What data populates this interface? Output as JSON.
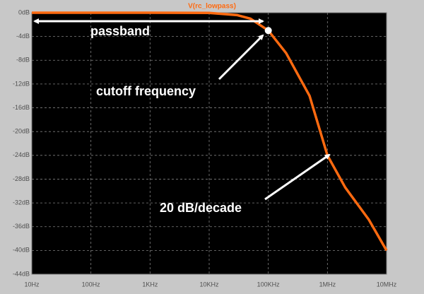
{
  "chart_data": {
    "type": "line",
    "title": "V(rc_lowpass)",
    "x": [
      10,
      100,
      1000,
      10000,
      30000,
      50000,
      100000,
      200000,
      500000,
      1000000,
      2000000,
      5000000,
      10000000
    ],
    "series": [
      {
        "name": "V(rc_lowpass)",
        "color": "#ff6a10",
        "values": [
          0,
          0,
          0,
          -0.04,
          -0.4,
          -1,
          -3,
          -6.8,
          -14,
          -24,
          -29.4,
          -34.8,
          -40
        ]
      }
    ],
    "log_x": true,
    "grid": true,
    "xlim": [
      10,
      10000000
    ],
    "xticks": [
      {
        "value": 10,
        "label": "10Hz"
      },
      {
        "value": 100,
        "label": "100Hz"
      },
      {
        "value": 1000,
        "label": "1KHz"
      },
      {
        "value": 10000,
        "label": "10KHz"
      },
      {
        "value": 100000,
        "label": "100KHz"
      },
      {
        "value": 1000000,
        "label": "1MHz"
      },
      {
        "value": 10000000,
        "label": "10MHz"
      }
    ],
    "ylim": [
      -44,
      0
    ],
    "yticks": [
      {
        "value": 0,
        "label": "0dB"
      },
      {
        "value": -4,
        "label": "-4dB"
      },
      {
        "value": -8,
        "label": "-8dB"
      },
      {
        "value": -12,
        "label": "-12dB"
      },
      {
        "value": -16,
        "label": "-16dB"
      },
      {
        "value": -20,
        "label": "-20dB"
      },
      {
        "value": -24,
        "label": "-24dB"
      },
      {
        "value": -28,
        "label": "-28dB"
      },
      {
        "value": -32,
        "label": "-32dB"
      },
      {
        "value": -36,
        "label": "-36dB"
      },
      {
        "value": -40,
        "label": "-40dB"
      },
      {
        "value": -44,
        "label": "-44dB"
      }
    ],
    "annotations": [
      "passband",
      "cutoff frequency",
      "20 dB/decade"
    ]
  }
}
